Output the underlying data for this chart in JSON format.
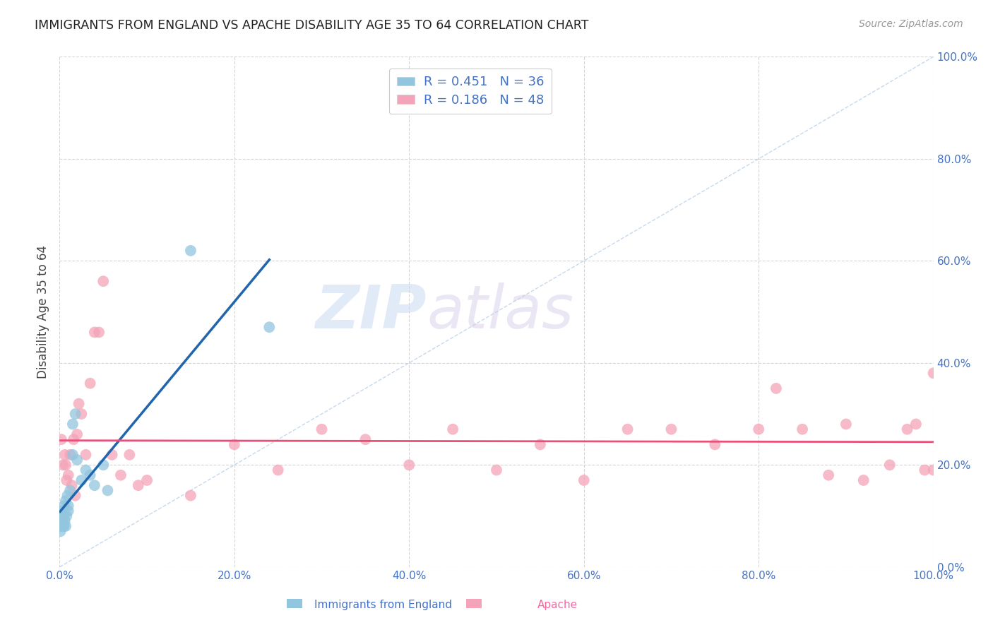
{
  "title": "IMMIGRANTS FROM ENGLAND VS APACHE DISABILITY AGE 35 TO 64 CORRELATION CHART",
  "source": "Source: ZipAtlas.com",
  "xlabel_tick_vals": [
    0,
    0.2,
    0.4,
    0.6,
    0.8,
    1.0
  ],
  "ylabel_tick_vals": [
    0,
    0.2,
    0.4,
    0.6,
    0.8,
    1.0
  ],
  "ylabel": "Disability Age 35 to 64",
  "legend_label1": "Immigrants from England",
  "legend_label2": "Apache",
  "R1": "0.451",
  "N1": "36",
  "R2": "0.186",
  "N2": "48",
  "color_blue": "#92c5de",
  "color_pink": "#f4a3b8",
  "color_blue_line": "#2166ac",
  "color_pink_line": "#e8507a",
  "color_diag": "#b8cfe8",
  "watermark_zip": "ZIP",
  "watermark_atlas": "atlas",
  "background_color": "#ffffff",
  "grid_color": "#d5d5d5",
  "tick_color": "#4472c4",
  "title_color": "#222222",
  "source_color": "#999999",
  "blue_x": [
    0.0005,
    0.001,
    0.001,
    0.0012,
    0.0015,
    0.002,
    0.002,
    0.002,
    0.003,
    0.003,
    0.003,
    0.004,
    0.004,
    0.005,
    0.005,
    0.005,
    0.006,
    0.007,
    0.007,
    0.008,
    0.009,
    0.01,
    0.01,
    0.012,
    0.015,
    0.015,
    0.018,
    0.02,
    0.025,
    0.03,
    0.035,
    0.04,
    0.05,
    0.055,
    0.15,
    0.24
  ],
  "blue_y": [
    0.08,
    0.07,
    0.09,
    0.1,
    0.08,
    0.09,
    0.1,
    0.11,
    0.08,
    0.09,
    0.1,
    0.08,
    0.09,
    0.08,
    0.1,
    0.12,
    0.09,
    0.08,
    0.13,
    0.1,
    0.14,
    0.11,
    0.12,
    0.15,
    0.28,
    0.22,
    0.3,
    0.21,
    0.17,
    0.19,
    0.18,
    0.16,
    0.2,
    0.15,
    0.62,
    0.47
  ],
  "pink_x": [
    0.002,
    0.004,
    0.006,
    0.007,
    0.008,
    0.01,
    0.012,
    0.014,
    0.016,
    0.018,
    0.02,
    0.022,
    0.025,
    0.03,
    0.035,
    0.04,
    0.045,
    0.05,
    0.06,
    0.07,
    0.08,
    0.09,
    0.1,
    0.15,
    0.2,
    0.25,
    0.3,
    0.35,
    0.4,
    0.45,
    0.5,
    0.55,
    0.6,
    0.65,
    0.7,
    0.75,
    0.8,
    0.82,
    0.85,
    0.88,
    0.9,
    0.92,
    0.95,
    0.97,
    0.98,
    0.99,
    1.0,
    1.0
  ],
  "pink_y": [
    0.25,
    0.2,
    0.22,
    0.2,
    0.17,
    0.18,
    0.22,
    0.16,
    0.25,
    0.14,
    0.26,
    0.32,
    0.3,
    0.22,
    0.36,
    0.46,
    0.46,
    0.56,
    0.22,
    0.18,
    0.22,
    0.16,
    0.17,
    0.14,
    0.24,
    0.19,
    0.27,
    0.25,
    0.2,
    0.27,
    0.19,
    0.24,
    0.17,
    0.27,
    0.27,
    0.24,
    0.27,
    0.35,
    0.27,
    0.18,
    0.28,
    0.17,
    0.2,
    0.27,
    0.28,
    0.19,
    0.38,
    0.19
  ]
}
